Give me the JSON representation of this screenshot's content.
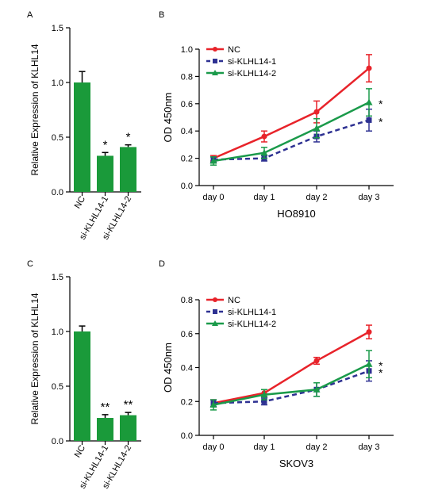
{
  "panels": {
    "A": {
      "label": "A"
    },
    "B": {
      "label": "B"
    },
    "C": {
      "label": "C"
    },
    "D": {
      "label": "D"
    }
  },
  "colors": {
    "bar": "#1a9a3a",
    "nc": "#e8232a",
    "si1": "#2e3192",
    "si2": "#1a9a4a"
  },
  "chart_data": [
    {
      "panel": "A",
      "type": "bar",
      "categories": [
        "NC",
        "si-KLHL14-1",
        "si-KLHL14-2"
      ],
      "values": [
        1.0,
        0.33,
        0.41
      ],
      "errors": [
        0.1,
        0.03,
        0.02
      ],
      "significance": [
        "",
        "*",
        "*"
      ],
      "ylabel": "Relative Expression of KLHL14",
      "ylim": [
        0,
        1.5
      ],
      "yticks": [
        "0.0",
        "0.5",
        "1.0",
        "1.5"
      ],
      "ytick_values": [
        0,
        0.5,
        1.0,
        1.5
      ]
    },
    {
      "panel": "B",
      "type": "line",
      "categories": [
        "day 0",
        "day 1",
        "day 2",
        "day 3"
      ],
      "xlabel": "HO8910",
      "ylabel": "OD 450nm",
      "ylim": [
        0,
        1.0
      ],
      "yticks": [
        "0.0",
        "0.2",
        "0.4",
        "0.6",
        "0.8",
        "1.0"
      ],
      "ytick_values": [
        0,
        0.2,
        0.4,
        0.6,
        0.8,
        1.0
      ],
      "legend": "top-left",
      "series": [
        {
          "name": "NC",
          "key": "nc",
          "values": [
            0.2,
            0.36,
            0.54,
            0.86
          ],
          "errors": [
            0.02,
            0.04,
            0.08,
            0.1
          ],
          "marker": "circle",
          "dash": false,
          "significance": ""
        },
        {
          "name": "si-KLHL14-1",
          "key": "si1",
          "values": [
            0.19,
            0.2,
            0.36,
            0.48
          ],
          "errors": [
            0.02,
            0.02,
            0.04,
            0.08
          ],
          "marker": "square",
          "dash": true,
          "significance": "*"
        },
        {
          "name": "si-KLHL14-2",
          "key": "si2",
          "values": [
            0.18,
            0.24,
            0.42,
            0.61
          ],
          "errors": [
            0.03,
            0.04,
            0.07,
            0.1
          ],
          "marker": "triangle",
          "dash": false,
          "significance": "*"
        }
      ]
    },
    {
      "panel": "C",
      "type": "bar",
      "categories": [
        "NC",
        "si-KLHL14-1",
        "si-KLHL14-2"
      ],
      "values": [
        1.0,
        0.21,
        0.235
      ],
      "errors": [
        0.05,
        0.03,
        0.025
      ],
      "significance": [
        "",
        "**",
        "**"
      ],
      "ylabel": "Relative Expression of KLHL14",
      "ylim": [
        0,
        1.5
      ],
      "yticks": [
        "0.0",
        "0.5",
        "1.0",
        "1.5"
      ],
      "ytick_values": [
        0,
        0.5,
        1.0,
        1.5
      ]
    },
    {
      "panel": "D",
      "type": "line",
      "categories": [
        "day 0",
        "day 1",
        "day 2",
        "day 3"
      ],
      "xlabel": "SKOV3",
      "ylabel": "OD 450nm",
      "ylim": [
        0,
        0.8
      ],
      "yticks": [
        "0.0",
        "0.2",
        "0.4",
        "0.6",
        "0.8"
      ],
      "ytick_values": [
        0,
        0.2,
        0.4,
        0.6,
        0.8
      ],
      "legend": "top-left",
      "series": [
        {
          "name": "NC",
          "key": "nc",
          "values": [
            0.19,
            0.25,
            0.44,
            0.61
          ],
          "errors": [
            0.02,
            0.02,
            0.02,
            0.04
          ],
          "marker": "circle",
          "dash": false,
          "significance": ""
        },
        {
          "name": "si-KLHL14-1",
          "key": "si1",
          "values": [
            0.19,
            0.2,
            0.27,
            0.38
          ],
          "errors": [
            0.02,
            0.02,
            0.04,
            0.06
          ],
          "marker": "square",
          "dash": true,
          "significance": "*"
        },
        {
          "name": "si-KLHL14-2",
          "key": "si2",
          "values": [
            0.18,
            0.24,
            0.27,
            0.42
          ],
          "errors": [
            0.03,
            0.03,
            0.04,
            0.08
          ],
          "marker": "triangle",
          "dash": false,
          "significance": "*"
        }
      ]
    }
  ]
}
